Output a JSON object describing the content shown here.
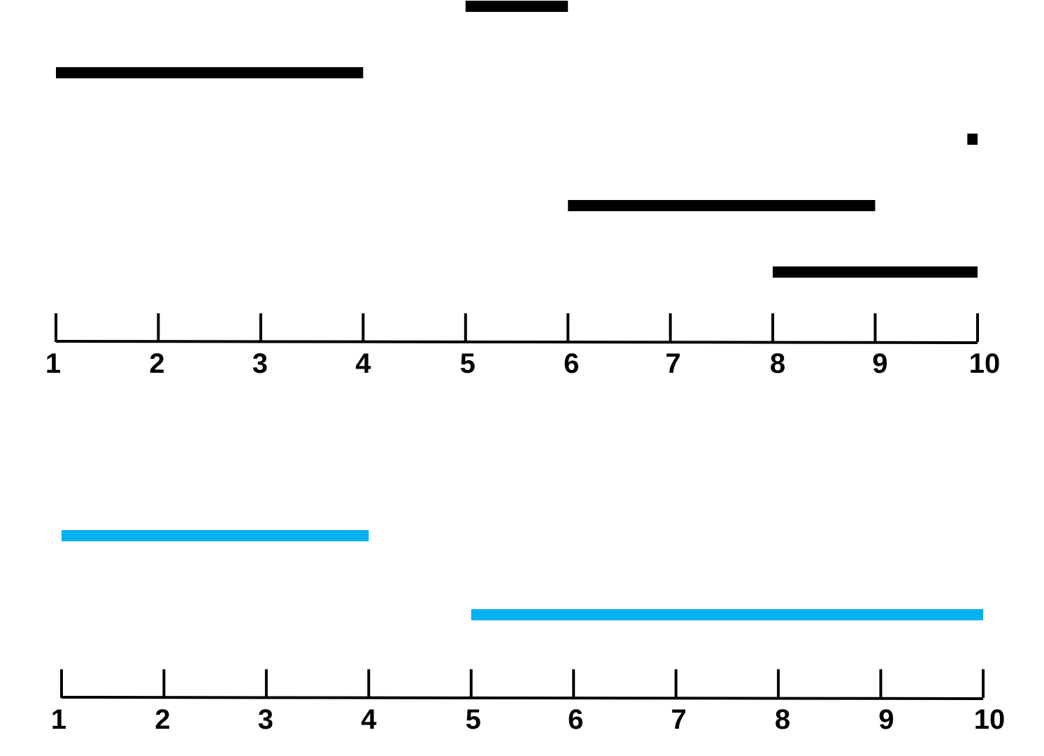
{
  "diagrams": [
    {
      "id": "intervals-input",
      "axis": {
        "min": 1,
        "max": 10,
        "ticks": [
          1,
          2,
          3,
          4,
          5,
          6,
          7,
          8,
          9,
          10
        ],
        "tick_labels": [
          "1",
          "2",
          "3",
          "4",
          "5",
          "6",
          "7",
          "8",
          "9",
          "10"
        ]
      },
      "bar_color": "#000000",
      "intervals": [
        {
          "start": 5,
          "end": 6
        },
        {
          "start": 1,
          "end": 4
        },
        {
          "start": 9.9,
          "end": 10
        },
        {
          "start": 6,
          "end": 9
        },
        {
          "start": 8,
          "end": 10
        }
      ]
    },
    {
      "id": "intervals-merged",
      "axis": {
        "min": 1,
        "max": 10,
        "ticks": [
          1,
          2,
          3,
          4,
          5,
          6,
          7,
          8,
          9,
          10
        ],
        "tick_labels": [
          "1",
          "2",
          "3",
          "4",
          "5",
          "6",
          "7",
          "8",
          "9",
          "10"
        ]
      },
      "bar_color": "#00b0f0",
      "intervals": [
        {
          "start": 1,
          "end": 4
        },
        {
          "start": 5,
          "end": 10
        }
      ]
    }
  ]
}
